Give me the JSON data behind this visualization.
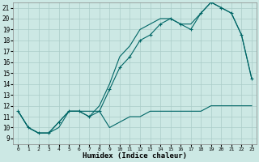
{
  "xlabel": "Humidex (Indice chaleur)",
  "ylabel": "",
  "background_color": "#cce8e4",
  "grid_color": "#aaccc8",
  "line_color": "#006666",
  "xlim": [
    -0.5,
    23.5
  ],
  "ylim": [
    8.5,
    21.5
  ],
  "xticks": [
    0,
    1,
    2,
    3,
    4,
    5,
    6,
    7,
    8,
    9,
    10,
    11,
    12,
    13,
    14,
    15,
    16,
    17,
    18,
    19,
    20,
    21,
    22,
    23
  ],
  "yticks": [
    9,
    10,
    11,
    12,
    13,
    14,
    15,
    16,
    17,
    18,
    19,
    20,
    21
  ],
  "line1_x": [
    0,
    1,
    2,
    3,
    4,
    5,
    6,
    7,
    8,
    9,
    10,
    11,
    12,
    13,
    14,
    15,
    16,
    17,
    18,
    19,
    20,
    21,
    22,
    23
  ],
  "line1_y": [
    11.5,
    10.0,
    9.5,
    9.5,
    10.0,
    11.5,
    11.5,
    11.5,
    11.5,
    10.0,
    10.5,
    11.0,
    11.0,
    11.5,
    11.5,
    11.5,
    11.5,
    11.5,
    11.5,
    12.0,
    12.0,
    12.0,
    12.0,
    12.0
  ],
  "line2_x": [
    0,
    1,
    2,
    3,
    4,
    5,
    6,
    7,
    8,
    9,
    10,
    11,
    12,
    13,
    14,
    15,
    16,
    17,
    18,
    19,
    20,
    21,
    22,
    23
  ],
  "line2_y": [
    11.5,
    10.0,
    9.5,
    9.5,
    10.5,
    11.5,
    11.5,
    11.0,
    11.5,
    13.5,
    15.5,
    16.5,
    18.0,
    18.5,
    19.5,
    20.0,
    19.5,
    19.0,
    20.5,
    21.5,
    21.0,
    20.5,
    18.5,
    14.5
  ],
  "line3_x": [
    0,
    1,
    2,
    3,
    4,
    5,
    6,
    7,
    8,
    9,
    10,
    11,
    12,
    13,
    14,
    15,
    16,
    17,
    18,
    19,
    20,
    21,
    22,
    23
  ],
  "line3_y": [
    11.5,
    10.0,
    9.5,
    9.5,
    10.5,
    11.5,
    11.5,
    11.0,
    12.0,
    14.0,
    16.5,
    17.5,
    19.0,
    19.5,
    20.0,
    20.0,
    19.5,
    19.5,
    20.5,
    21.5,
    21.0,
    20.5,
    18.5,
    14.5
  ]
}
